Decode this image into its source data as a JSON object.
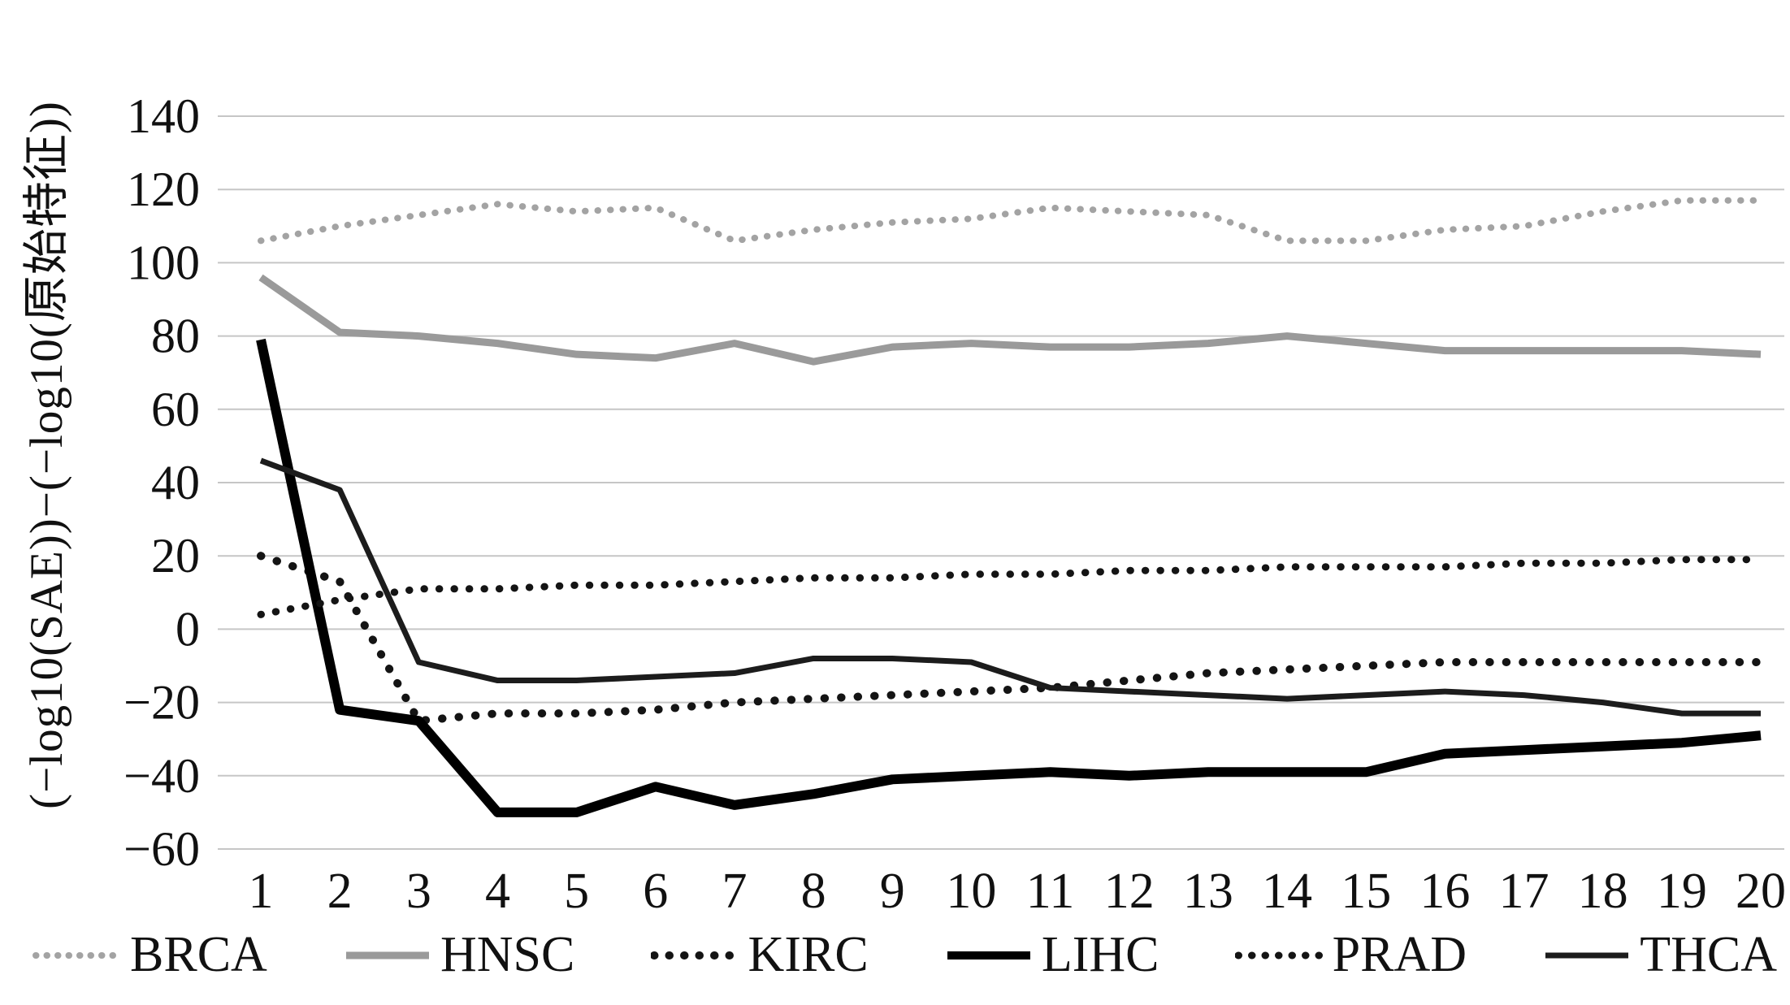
{
  "chart_data": {
    "type": "line",
    "title": "",
    "xlabel": "",
    "ylabel": "(−log10(SAE))−(−log10(原始特征))",
    "ylim": [
      -60,
      140
    ],
    "ytick_step": 20,
    "grid": true,
    "legend_position": "bottom",
    "x": [
      1,
      2,
      3,
      4,
      5,
      6,
      7,
      8,
      9,
      10,
      11,
      12,
      13,
      14,
      15,
      16,
      17,
      18,
      19,
      20
    ],
    "series": [
      {
        "name": "BRCA",
        "style": "dotted",
        "color": "#a3a3a3",
        "width": 8,
        "gap": 15,
        "values": [
          106,
          110,
          113,
          116,
          114,
          115,
          106,
          109,
          111,
          112,
          115,
          114,
          113,
          106,
          106,
          109,
          110,
          114,
          117,
          117
        ]
      },
      {
        "name": "HNSC",
        "style": "solid",
        "color": "#9a9a9a",
        "width": 9,
        "gap": 0,
        "values": [
          96,
          81,
          80,
          78,
          75,
          74,
          78,
          73,
          77,
          78,
          77,
          77,
          78,
          80,
          78,
          76,
          76,
          76,
          76,
          75
        ]
      },
      {
        "name": "KIRC",
        "style": "dotted",
        "color": "#141414",
        "width": 10,
        "gap": 20,
        "values": [
          20,
          13,
          -25,
          -23,
          -23,
          -22,
          -20,
          -19,
          -18,
          -17,
          -16,
          -14,
          -12,
          -11,
          -10,
          -9,
          -9,
          -9,
          -9,
          -9
        ]
      },
      {
        "name": "LIHC",
        "style": "solid",
        "color": "#000000",
        "width": 12,
        "gap": 0,
        "values": [
          79,
          -22,
          -25,
          -50,
          -50,
          -43,
          -48,
          -45,
          -41,
          -40,
          -39,
          -40,
          -39,
          -39,
          -39,
          -34,
          -33,
          -32,
          -31,
          -29
        ]
      },
      {
        "name": "PRAD",
        "style": "dotted",
        "color": "#141414",
        "width": 9,
        "gap": 18,
        "values": [
          4,
          8,
          11,
          11,
          12,
          12,
          13,
          14,
          14,
          15,
          15,
          16,
          16,
          17,
          17,
          17,
          18,
          18,
          19,
          19
        ]
      },
      {
        "name": "THCA",
        "style": "solid",
        "color": "#1c1c1c",
        "width": 7,
        "gap": 0,
        "values": [
          46,
          38,
          -9,
          -14,
          -14,
          -13,
          -12,
          -8,
          -8,
          -9,
          -16,
          -17,
          -18,
          -19,
          -18,
          -17,
          -18,
          -20,
          -23,
          -23
        ]
      }
    ]
  },
  "axis": {
    "y_ticks": [
      "140",
      "120",
      "100",
      "80",
      "60",
      "40",
      "20",
      "0",
      "−20",
      "−40",
      "−60"
    ],
    "x_ticks": [
      "1",
      "2",
      "3",
      "4",
      "5",
      "6",
      "7",
      "8",
      "9",
      "10",
      "11",
      "12",
      "13",
      "14",
      "15",
      "16",
      "17",
      "18",
      "19",
      "20"
    ]
  },
  "legend": {
    "items": [
      "BRCA",
      "HNSC",
      "KIRC",
      "LIHC",
      "PRAD",
      "THCA"
    ]
  }
}
